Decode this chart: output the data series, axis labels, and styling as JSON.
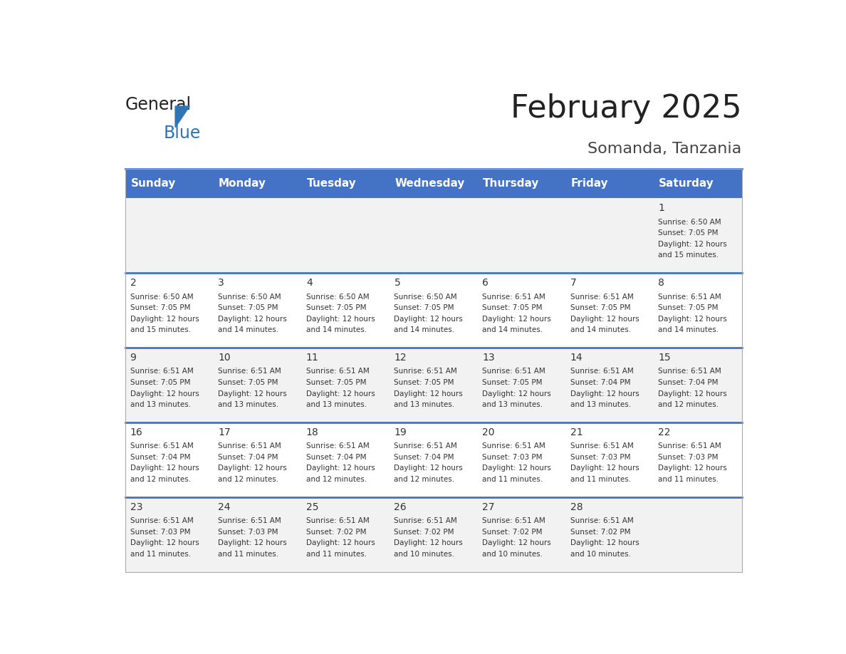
{
  "title": "February 2025",
  "subtitle": "Somanda, Tanzania",
  "days_of_week": [
    "Sunday",
    "Monday",
    "Tuesday",
    "Wednesday",
    "Thursday",
    "Friday",
    "Saturday"
  ],
  "header_bg": "#4472C4",
  "header_text": "#FFFFFF",
  "row_separator_color": "#4472C4",
  "cell_bg_odd": "#F2F2F2",
  "cell_bg_even": "#FFFFFF",
  "text_color": "#333333",
  "title_color": "#222222",
  "subtitle_color": "#444444",
  "logo_general_color": "#222222",
  "logo_blue_color": "#2E75B6",
  "calendar_data": [
    {
      "day": 1,
      "col": 6,
      "row": 0,
      "sunrise": "6:50 AM",
      "sunset": "7:05 PM",
      "daylight": "12 hours and 15 minutes."
    },
    {
      "day": 2,
      "col": 0,
      "row": 1,
      "sunrise": "6:50 AM",
      "sunset": "7:05 PM",
      "daylight": "12 hours and 15 minutes."
    },
    {
      "day": 3,
      "col": 1,
      "row": 1,
      "sunrise": "6:50 AM",
      "sunset": "7:05 PM",
      "daylight": "12 hours and 14 minutes."
    },
    {
      "day": 4,
      "col": 2,
      "row": 1,
      "sunrise": "6:50 AM",
      "sunset": "7:05 PM",
      "daylight": "12 hours and 14 minutes."
    },
    {
      "day": 5,
      "col": 3,
      "row": 1,
      "sunrise": "6:50 AM",
      "sunset": "7:05 PM",
      "daylight": "12 hours and 14 minutes."
    },
    {
      "day": 6,
      "col": 4,
      "row": 1,
      "sunrise": "6:51 AM",
      "sunset": "7:05 PM",
      "daylight": "12 hours and 14 minutes."
    },
    {
      "day": 7,
      "col": 5,
      "row": 1,
      "sunrise": "6:51 AM",
      "sunset": "7:05 PM",
      "daylight": "12 hours and 14 minutes."
    },
    {
      "day": 8,
      "col": 6,
      "row": 1,
      "sunrise": "6:51 AM",
      "sunset": "7:05 PM",
      "daylight": "12 hours and 14 minutes."
    },
    {
      "day": 9,
      "col": 0,
      "row": 2,
      "sunrise": "6:51 AM",
      "sunset": "7:05 PM",
      "daylight": "12 hours and 13 minutes."
    },
    {
      "day": 10,
      "col": 1,
      "row": 2,
      "sunrise": "6:51 AM",
      "sunset": "7:05 PM",
      "daylight": "12 hours and 13 minutes."
    },
    {
      "day": 11,
      "col": 2,
      "row": 2,
      "sunrise": "6:51 AM",
      "sunset": "7:05 PM",
      "daylight": "12 hours and 13 minutes."
    },
    {
      "day": 12,
      "col": 3,
      "row": 2,
      "sunrise": "6:51 AM",
      "sunset": "7:05 PM",
      "daylight": "12 hours and 13 minutes."
    },
    {
      "day": 13,
      "col": 4,
      "row": 2,
      "sunrise": "6:51 AM",
      "sunset": "7:05 PM",
      "daylight": "12 hours and 13 minutes."
    },
    {
      "day": 14,
      "col": 5,
      "row": 2,
      "sunrise": "6:51 AM",
      "sunset": "7:04 PM",
      "daylight": "12 hours and 13 minutes."
    },
    {
      "day": 15,
      "col": 6,
      "row": 2,
      "sunrise": "6:51 AM",
      "sunset": "7:04 PM",
      "daylight": "12 hours and 12 minutes."
    },
    {
      "day": 16,
      "col": 0,
      "row": 3,
      "sunrise": "6:51 AM",
      "sunset": "7:04 PM",
      "daylight": "12 hours and 12 minutes."
    },
    {
      "day": 17,
      "col": 1,
      "row": 3,
      "sunrise": "6:51 AM",
      "sunset": "7:04 PM",
      "daylight": "12 hours and 12 minutes."
    },
    {
      "day": 18,
      "col": 2,
      "row": 3,
      "sunrise": "6:51 AM",
      "sunset": "7:04 PM",
      "daylight": "12 hours and 12 minutes."
    },
    {
      "day": 19,
      "col": 3,
      "row": 3,
      "sunrise": "6:51 AM",
      "sunset": "7:04 PM",
      "daylight": "12 hours and 12 minutes."
    },
    {
      "day": 20,
      "col": 4,
      "row": 3,
      "sunrise": "6:51 AM",
      "sunset": "7:03 PM",
      "daylight": "12 hours and 11 minutes."
    },
    {
      "day": 21,
      "col": 5,
      "row": 3,
      "sunrise": "6:51 AM",
      "sunset": "7:03 PM",
      "daylight": "12 hours and 11 minutes."
    },
    {
      "day": 22,
      "col": 6,
      "row": 3,
      "sunrise": "6:51 AM",
      "sunset": "7:03 PM",
      "daylight": "12 hours and 11 minutes."
    },
    {
      "day": 23,
      "col": 0,
      "row": 4,
      "sunrise": "6:51 AM",
      "sunset": "7:03 PM",
      "daylight": "12 hours and 11 minutes."
    },
    {
      "day": 24,
      "col": 1,
      "row": 4,
      "sunrise": "6:51 AM",
      "sunset": "7:03 PM",
      "daylight": "12 hours and 11 minutes."
    },
    {
      "day": 25,
      "col": 2,
      "row": 4,
      "sunrise": "6:51 AM",
      "sunset": "7:02 PM",
      "daylight": "12 hours and 11 minutes."
    },
    {
      "day": 26,
      "col": 3,
      "row": 4,
      "sunrise": "6:51 AM",
      "sunset": "7:02 PM",
      "daylight": "12 hours and 10 minutes."
    },
    {
      "day": 27,
      "col": 4,
      "row": 4,
      "sunrise": "6:51 AM",
      "sunset": "7:02 PM",
      "daylight": "12 hours and 10 minutes."
    },
    {
      "day": 28,
      "col": 5,
      "row": 4,
      "sunrise": "6:51 AM",
      "sunset": "7:02 PM",
      "daylight": "12 hours and 10 minutes."
    }
  ]
}
